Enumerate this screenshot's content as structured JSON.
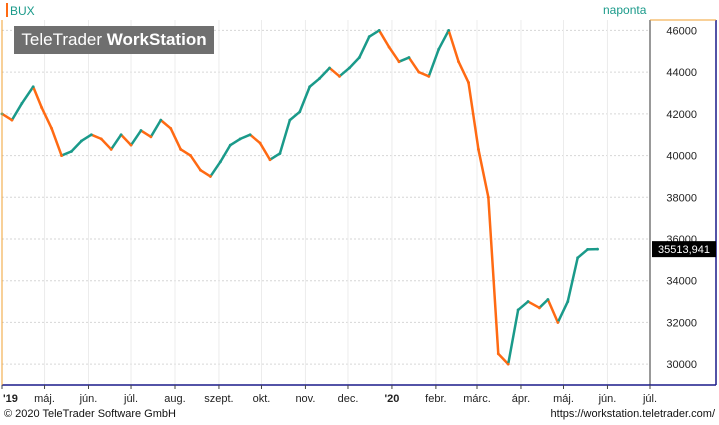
{
  "header": {
    "symbol": "BUX",
    "interval": "naponta",
    "brand_light": "TeleTrader",
    "brand_bold": "WorkStation"
  },
  "footer": {
    "copyright": "© 2020 TeleTrader Software GmbH",
    "url": "https://workstation.teletrader.com/"
  },
  "colors": {
    "up": "#1a9a8a",
    "down": "#ff6a13",
    "grid": "#d6d6d6",
    "axis_border": "#1a1a8a",
    "last_price_bg": "#000000"
  },
  "chart_data": {
    "type": "line",
    "title": "BUX",
    "subtitle": "naponta",
    "x_tick_labels": [
      "'19",
      "máj.",
      "jún.",
      "júl.",
      "aug.",
      "szept.",
      "okt.",
      "nov.",
      "dec.",
      "'20",
      "febr.",
      "márc.",
      "ápr.",
      "máj.",
      "jún.",
      "júl."
    ],
    "y_tick_labels": [
      "30000",
      "32000",
      "34000",
      "36000",
      "38000",
      "40000",
      "42000",
      "44000",
      "46000"
    ],
    "ylim": [
      29000,
      46500
    ],
    "last_price": 35513.941,
    "last_price_label": "35513,941",
    "grid": true,
    "series": [
      {
        "x": [
          "2019-04-01",
          "2019-04-08",
          "2019-04-15",
          "2019-04-23",
          "2019-04-29",
          "2019-05-06",
          "2019-05-13",
          "2019-05-20",
          "2019-05-27",
          "2019-06-03",
          "2019-06-10",
          "2019-06-17",
          "2019-06-24",
          "2019-07-01",
          "2019-07-08",
          "2019-07-15",
          "2019-07-22",
          "2019-07-29",
          "2019-08-05",
          "2019-08-12",
          "2019-08-19",
          "2019-08-26",
          "2019-09-02",
          "2019-09-09",
          "2019-09-16",
          "2019-09-23",
          "2019-09-30",
          "2019-10-07",
          "2019-10-14",
          "2019-10-21",
          "2019-10-28",
          "2019-11-04",
          "2019-11-11",
          "2019-11-18",
          "2019-11-25",
          "2019-12-02",
          "2019-12-09",
          "2019-12-16",
          "2019-12-23",
          "2019-12-30",
          "2020-01-06",
          "2020-01-13",
          "2020-01-20",
          "2020-01-27",
          "2020-02-03",
          "2020-02-10",
          "2020-02-17",
          "2020-02-24",
          "2020-03-02",
          "2020-03-09",
          "2020-03-16",
          "2020-03-23",
          "2020-03-30",
          "2020-04-06",
          "2020-04-14",
          "2020-04-20",
          "2020-04-27",
          "2020-05-04",
          "2020-05-11",
          "2020-05-18",
          "2020-05-25"
        ],
        "values": [
          42000,
          41700,
          42500,
          43300,
          42300,
          41300,
          40000,
          40200,
          40700,
          41000,
          40800,
          40300,
          41000,
          40500,
          41200,
          40900,
          41700,
          41300,
          40300,
          40000,
          39300,
          39000,
          39700,
          40500,
          40800,
          41000,
          40600,
          39800,
          40100,
          41700,
          42100,
          43300,
          43700,
          44200,
          43800,
          44200,
          44700,
          45700,
          46000,
          45200,
          44500,
          44700,
          44000,
          43800,
          45100,
          46000,
          44500,
          43500,
          40300,
          38000,
          30500,
          30000,
          32600,
          33000,
          32700,
          33100,
          32000,
          33000,
          35100,
          35500,
          35514
        ]
      }
    ]
  }
}
